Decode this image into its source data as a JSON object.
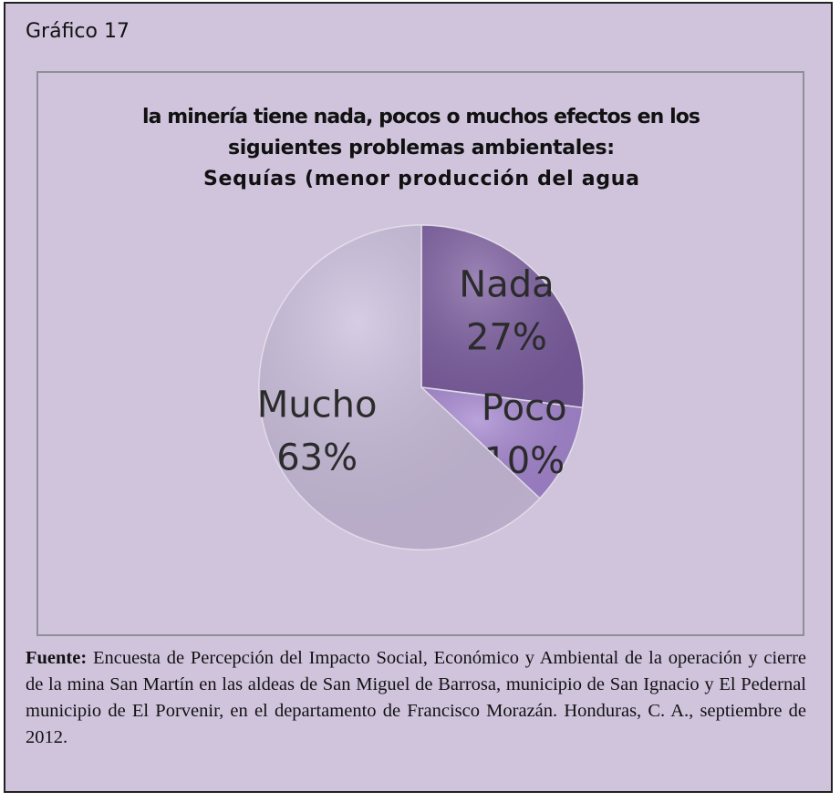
{
  "caption": "Gráfico 17",
  "chart_data": {
    "type": "pie",
    "title": [
      "la minería tiene nada, pocos o muchos efectos en los",
      "siguientes problemas ambientales:",
      "Sequías (menor producción del agua"
    ],
    "categories": [
      "Nada",
      "Poco",
      "Mucho"
    ],
    "values": [
      27,
      10,
      63
    ],
    "value_labels": [
      "27%",
      "10%",
      "63%"
    ],
    "colors": [
      "#7b5c9f",
      "#a384cf",
      "#c9bcdb"
    ]
  },
  "source": {
    "label": "Fuente:",
    "text": "Encuesta de Percepción del Impacto Social, Económico y Ambiental de la operación y cierre de la mina San Martín en las aldeas de San Miguel de Barrosa, municipio de San Ignacio y El Pedernal municipio de El Porvenir, en el departamento de Francisco Morazán. Honduras, C. A., septiembre de 2012."
  }
}
